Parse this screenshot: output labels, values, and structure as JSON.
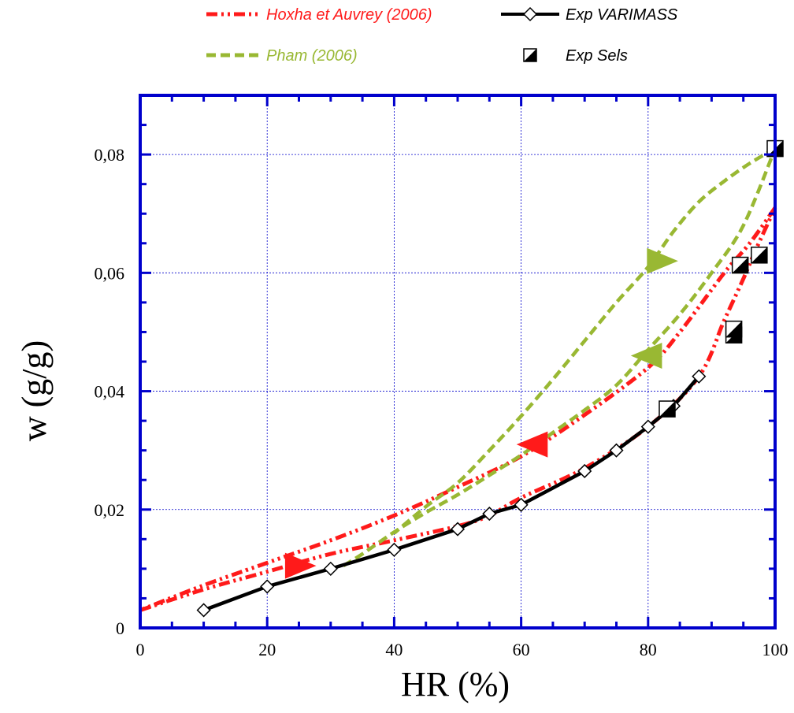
{
  "chart_data": {
    "type": "line",
    "xlabel": "HR (%)",
    "ylabel": "w (g/g)",
    "xlim": [
      0,
      100
    ],
    "ylim": [
      0,
      0.09
    ],
    "x_ticks": [
      0,
      20,
      40,
      60,
      80,
      100
    ],
    "x_tick_labels": [
      "0",
      "20",
      "40",
      "60",
      "80",
      "100"
    ],
    "y_ticks": [
      0,
      0.02,
      0.04,
      0.06,
      0.08
    ],
    "y_tick_labels": [
      "0",
      "0,02",
      "0,04",
      "0,06",
      "0,08"
    ],
    "grid": true,
    "legend_position": "top",
    "colors": {
      "axis": "#0000cc",
      "grid": "#0000cc",
      "hoxha": "#ff1a1a",
      "pham": "#99b833",
      "varimass": "#000000",
      "sels": "#000000"
    },
    "series": [
      {
        "name": "Hoxha et Auvrey (2006)",
        "style": "dash-dot",
        "color": "#ff1a1a",
        "branches": [
          {
            "x": [
              0,
              10,
              20,
              30,
              40,
              50,
              55,
              60,
              70,
              80,
              88,
              92,
              95,
              97,
              100
            ],
            "y": [
              0.003,
              0.0065,
              0.0095,
              0.0125,
              0.0148,
              0.0172,
              0.019,
              0.022,
              0.027,
              0.034,
              0.0425,
              0.052,
              0.059,
              0.064,
              0.071
            ]
          },
          {
            "x": [
              100,
              96,
              92,
              85,
              80,
              70,
              60,
              50,
              40,
              30,
              20,
              10,
              0
            ],
            "y": [
              0.071,
              0.065,
              0.06,
              0.05,
              0.044,
              0.036,
              0.029,
              0.0238,
              0.019,
              0.0148,
              0.011,
              0.0072,
              0.003
            ]
          }
        ]
      },
      {
        "name": "Pham (2006)",
        "style": "dashed",
        "color": "#99b833",
        "branches": [
          {
            "x": [
              32,
              35,
              40,
              45,
              50,
              55,
              60,
              65,
              70,
              75,
              80,
              85,
              90,
              95,
              100
            ],
            "y": [
              0.0105,
              0.0125,
              0.0162,
              0.0195,
              0.0225,
              0.0258,
              0.0292,
              0.033,
              0.0368,
              0.041,
              0.047,
              0.053,
              0.06,
              0.068,
              0.081
            ]
          },
          {
            "x": [
              100,
              96,
              92,
              88,
              84,
              80,
              75,
              70,
              65,
              60,
              55,
              50,
              45,
              40
            ],
            "y": [
              0.081,
              0.0785,
              0.0755,
              0.072,
              0.067,
              0.061,
              0.055,
              0.0485,
              0.042,
              0.0358,
              0.03,
              0.0245,
              0.0205,
              0.016
            ]
          }
        ],
        "arrows": [
          {
            "x": 82,
            "y": 0.062,
            "direction": "right"
          },
          {
            "x": 80,
            "y": 0.046,
            "direction": "left"
          }
        ]
      },
      {
        "name": "Exp VARIMASS",
        "style": "solid",
        "marker": "diamond",
        "color": "#000000",
        "x": [
          10,
          20,
          30,
          40,
          50,
          55,
          60,
          70,
          75,
          80,
          84,
          88
        ],
        "y": [
          0.003,
          0.007,
          0.01,
          0.0132,
          0.0167,
          0.0193,
          0.0208,
          0.0265,
          0.03,
          0.034,
          0.0375,
          0.0425
        ]
      },
      {
        "name": "Exp Sels",
        "style": "none",
        "marker": "half-filled-square",
        "color": "#000000",
        "x": [
          83,
          93.5,
          93.5,
          94.5,
          97.5,
          100
        ],
        "y": [
          0.037,
          0.0495,
          0.0505,
          0.0613,
          0.063,
          0.081
        ]
      }
    ],
    "hoxha_arrows": [
      {
        "x": 62,
        "y": 0.031,
        "direction": "left"
      },
      {
        "x": 25,
        "y": 0.0105,
        "direction": "right"
      }
    ]
  }
}
